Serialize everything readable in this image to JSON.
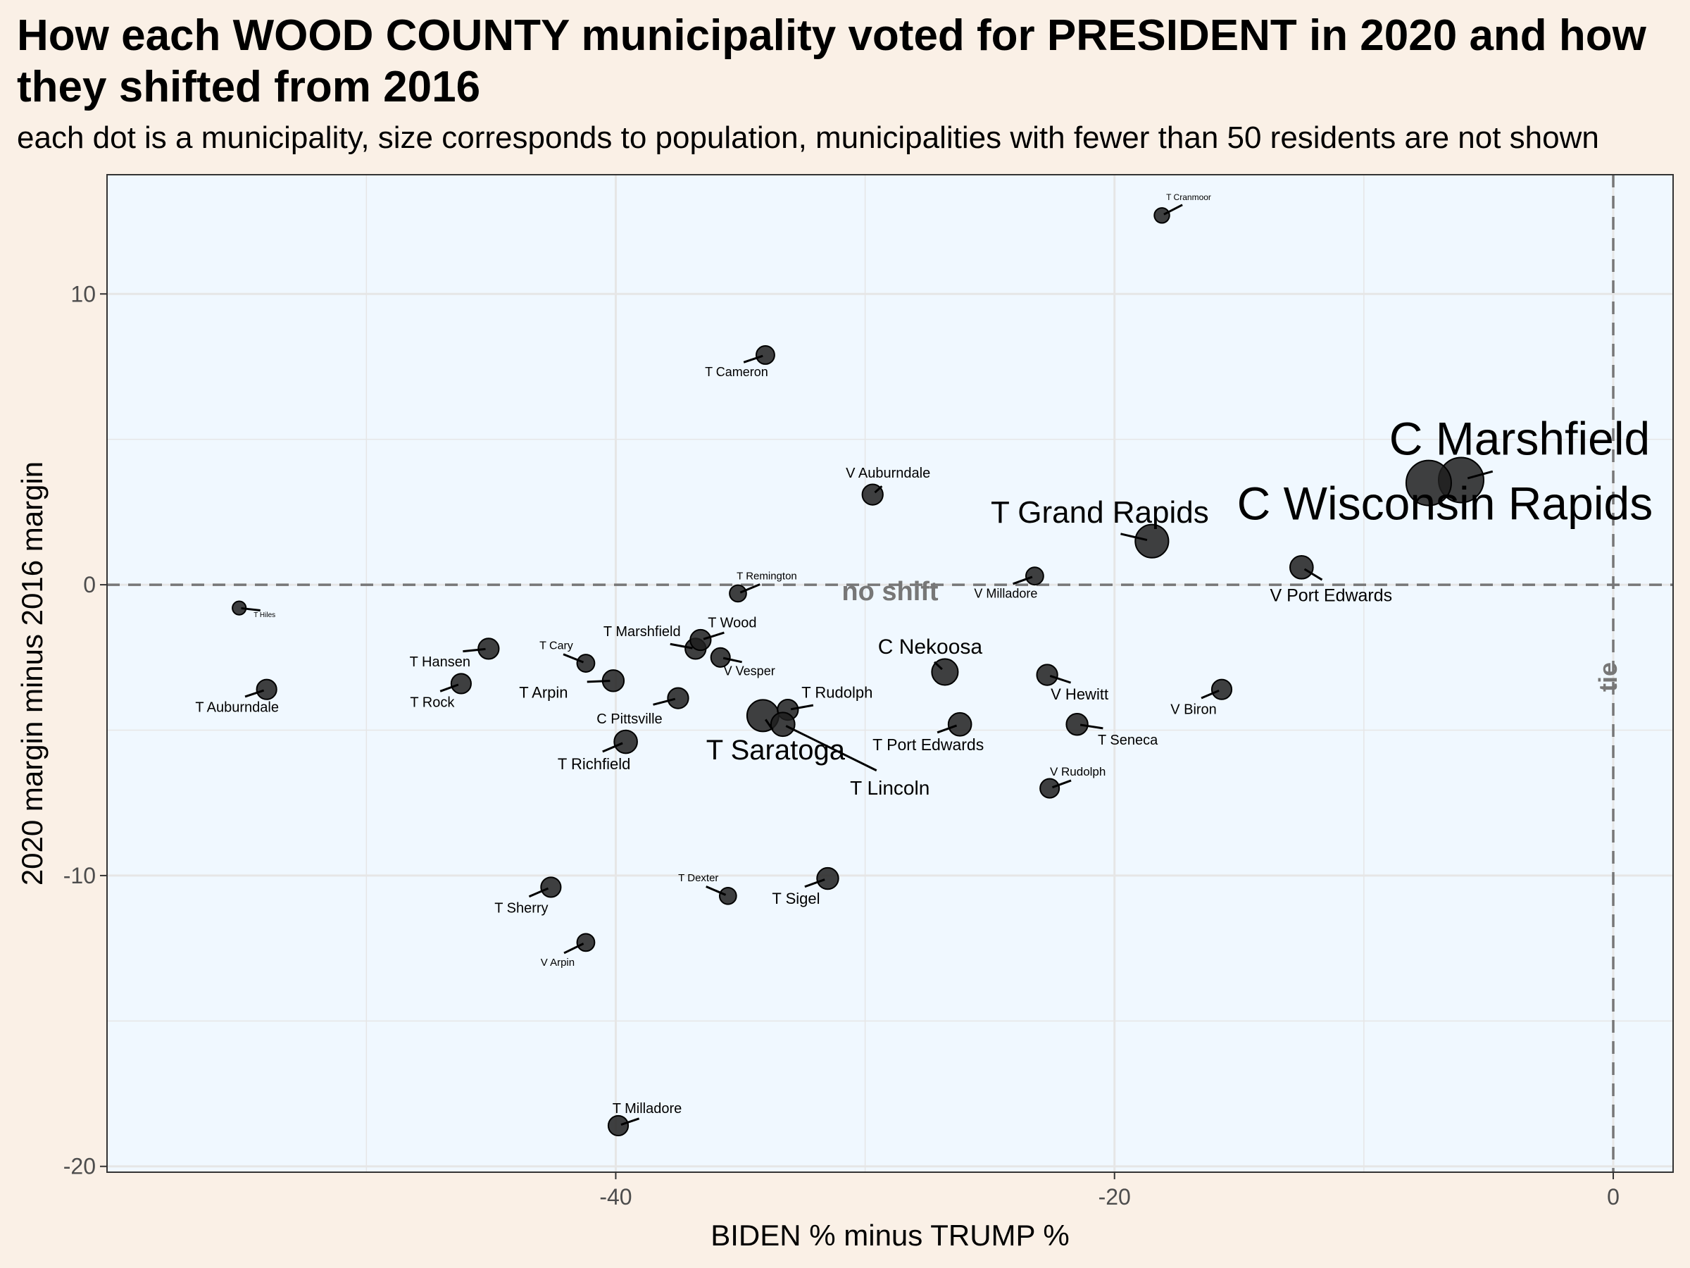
{
  "chart_data": {
    "type": "scatter",
    "title": "How each WOOD COUNTY municipality voted for PRESIDENT in 2020 and how they shifted from 2016",
    "subtitle": "each dot is a municipality, size corresponds to population, municipalities with fewer than 50 residents are not shown",
    "xlabel": "BIDEN % minus TRUMP %",
    "ylabel": "2020 margin minus 2016 margin",
    "xlim": [
      -60.4,
      2.4
    ],
    "ylim": [
      -20.2,
      14.1
    ],
    "xticks": [
      -40,
      -20,
      0
    ],
    "yticks": [
      -20,
      -10,
      0,
      10
    ],
    "grid": true,
    "reference_lines": {
      "horizontal": {
        "y": 0,
        "label": "no shift"
      },
      "vertical": {
        "x": 0,
        "label": "tie"
      }
    },
    "points": [
      {
        "name": "C Marshfield",
        "x": -6.1,
        "y": 3.6,
        "size": 5
      },
      {
        "name": "C Wisconsin Rapids",
        "x": -7.4,
        "y": 3.5,
        "size": 5
      },
      {
        "name": "T Grand Rapids",
        "x": -18.5,
        "y": 1.5,
        "size": 3.5
      },
      {
        "name": "V Port Edwards",
        "x": -12.5,
        "y": 0.6,
        "size": 2.2
      },
      {
        "name": "V Milladore",
        "x": -23.2,
        "y": 0.3,
        "size": 1.5
      },
      {
        "name": "T Cranmoor",
        "x": -18.1,
        "y": 12.7,
        "size": 1.2
      },
      {
        "name": "T Cameron",
        "x": -34.0,
        "y": 7.9,
        "size": 1.6
      },
      {
        "name": "V Auburndale",
        "x": -29.7,
        "y": 3.1,
        "size": 1.9
      },
      {
        "name": "T Remington",
        "x": -35.1,
        "y": -0.3,
        "size": 1.4
      },
      {
        "name": "T Hiles",
        "x": -55.1,
        "y": -0.8,
        "size": 1.0
      },
      {
        "name": "T Auburndale",
        "x": -54.0,
        "y": -3.6,
        "size": 1.8
      },
      {
        "name": "T Hansen",
        "x": -45.1,
        "y": -2.2,
        "size": 1.9
      },
      {
        "name": "T Rock",
        "x": -46.2,
        "y": -3.4,
        "size": 1.8
      },
      {
        "name": "T Cary",
        "x": -41.2,
        "y": -2.7,
        "size": 1.5
      },
      {
        "name": "T Marshfield",
        "x": -36.8,
        "y": -2.2,
        "size": 1.9
      },
      {
        "name": "T Wood",
        "x": -36.6,
        "y": -1.9,
        "size": 1.9
      },
      {
        "name": "V Vesper",
        "x": -35.8,
        "y": -2.5,
        "size": 1.7
      },
      {
        "name": "T Arpin",
        "x": -40.1,
        "y": -3.3,
        "size": 2.0
      },
      {
        "name": "C Pittsville",
        "x": -37.5,
        "y": -3.9,
        "size": 1.9
      },
      {
        "name": "T Richfield",
        "x": -39.6,
        "y": -5.4,
        "size": 2.2
      },
      {
        "name": "T Saratoga",
        "x": -34.1,
        "y": -4.5,
        "size": 3.3
      },
      {
        "name": "T Rudolph",
        "x": -33.1,
        "y": -4.3,
        "size": 1.9
      },
      {
        "name": "T Lincoln",
        "x": -33.3,
        "y": -4.8,
        "size": 2.3
      },
      {
        "name": "C Nekoosa",
        "x": -26.8,
        "y": -3.0,
        "size": 2.6
      },
      {
        "name": "T Port Edwards",
        "x": -26.2,
        "y": -4.8,
        "size": 2.2
      },
      {
        "name": "V Hewitt",
        "x": -22.7,
        "y": -3.1,
        "size": 1.9
      },
      {
        "name": "T Seneca",
        "x": -21.5,
        "y": -4.8,
        "size": 2.0
      },
      {
        "name": "V Biron",
        "x": -15.7,
        "y": -3.6,
        "size": 1.8
      },
      {
        "name": "V Rudolph",
        "x": -22.6,
        "y": -7.0,
        "size": 1.7
      },
      {
        "name": "T Dexter",
        "x": -35.5,
        "y": -10.7,
        "size": 1.4
      },
      {
        "name": "T Sigel",
        "x": -31.5,
        "y": -10.1,
        "size": 2.0
      },
      {
        "name": "T Sherry",
        "x": -42.6,
        "y": -10.4,
        "size": 1.8
      },
      {
        "name": "V Arpin",
        "x": -41.2,
        "y": -12.3,
        "size": 1.5
      },
      {
        "name": "T Milladore",
        "x": -39.9,
        "y": -18.6,
        "size": 1.8
      }
    ]
  },
  "colors": {
    "background": "#faf0e6",
    "panel": "#f0f8ff",
    "grid": "#e6e6e6",
    "point": "#1f1f1f",
    "reference": "#777777"
  }
}
